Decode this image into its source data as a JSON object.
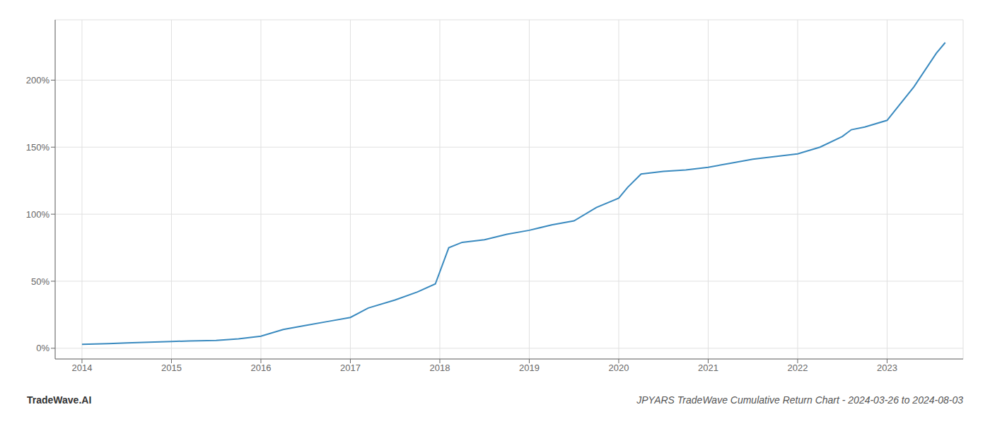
{
  "chart_data": {
    "type": "line",
    "title": "JPYARS TradeWave Cumulative Return Chart - 2024-03-26 to 2024-08-03",
    "annotations": [
      {
        "text": "TradeWave.AI"
      }
    ],
    "x": [
      2014.0,
      2014.15,
      2014.3,
      2014.5,
      2014.75,
      2015.0,
      2015.2,
      2015.5,
      2015.75,
      2016.0,
      2016.25,
      2016.5,
      2016.75,
      2017.0,
      2017.2,
      2017.5,
      2017.75,
      2017.95,
      2018.1,
      2018.25,
      2018.5,
      2018.75,
      2019.0,
      2019.25,
      2019.5,
      2019.75,
      2020.0,
      2020.1,
      2020.25,
      2020.5,
      2020.75,
      2021.0,
      2021.25,
      2021.5,
      2021.75,
      2022.0,
      2022.25,
      2022.5,
      2022.6,
      2022.75,
      2023.0,
      2023.3,
      2023.55,
      2023.65
    ],
    "values": [
      3.0,
      3.2,
      3.5,
      4.0,
      4.5,
      5.0,
      5.5,
      5.8,
      7.0,
      9.0,
      14.0,
      17.0,
      20.0,
      23.0,
      30.0,
      36.0,
      42.0,
      48.0,
      75.0,
      79.0,
      81.0,
      85.0,
      88.0,
      92.0,
      95.0,
      105.0,
      112.0,
      120.0,
      130.0,
      132.0,
      133.0,
      135.0,
      138.0,
      141.0,
      143.0,
      145.0,
      150.0,
      158.0,
      163.0,
      165.0,
      170.0,
      195.0,
      220.0,
      228.0
    ],
    "color": "#3a8abf",
    "xlim": [
      2013.7,
      2023.85
    ],
    "ylim": [
      -8,
      245
    ],
    "xticks": [
      2014,
      2015,
      2016,
      2017,
      2018,
      2019,
      2020,
      2021,
      2022,
      2023
    ],
    "yticks": [
      {
        "value": 0,
        "label": "0%"
      },
      {
        "value": 50,
        "label": "50%"
      },
      {
        "value": 100,
        "label": "100%"
      },
      {
        "value": 150,
        "label": "150%"
      },
      {
        "value": 200,
        "label": "200%"
      }
    ],
    "grid": true
  }
}
